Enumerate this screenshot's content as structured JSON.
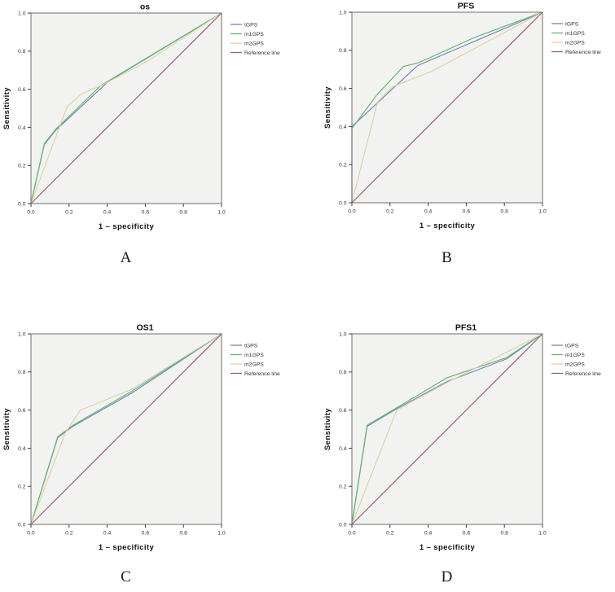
{
  "figure": {
    "background": "#ffffff",
    "panel_letters": [
      "A",
      "B",
      "C",
      "D"
    ]
  },
  "style": {
    "plot_bg": "#f2f2f1",
    "frame_color": "#6f6f6f",
    "tick_color": "#3c3c3c",
    "curve_colors": {
      "tGPS": "#6e86ba",
      "m1GPS": "#67b46d",
      "m2GPS": "#d9d3a7",
      "reference": "#975e79"
    }
  },
  "chart_data": [
    {
      "type": "line",
      "title": "os",
      "panel_letter": "A",
      "xlabel": "1 – specificity",
      "ylabel": "Sensitivity",
      "xlim": [
        0,
        1
      ],
      "ylim": [
        0,
        1
      ],
      "x_ticks": [
        0,
        0.2,
        0.4,
        0.6,
        0.8,
        1.0
      ],
      "y_ticks": [
        0,
        0.2,
        0.4,
        0.6,
        0.8,
        1.0
      ],
      "tick_labels": [
        "0.0",
        "0.2",
        "0.4",
        "0.6",
        "0.8",
        "1.0"
      ],
      "grid": false,
      "legend_position": "top-right-outside",
      "legend": [
        "tGPS",
        "m1GPS",
        "m2GPS",
        "Reference line"
      ],
      "series": [
        {
          "name": "tGPS",
          "color": "#6e86ba",
          "points": [
            [
              0,
              0
            ],
            [
              0.07,
              0.31
            ],
            [
              0.13,
              0.385
            ],
            [
              0.405,
              0.64
            ],
            [
              1,
              1
            ]
          ]
        },
        {
          "name": "m1GPS",
          "color": "#67b46d",
          "points": [
            [
              0,
              0
            ],
            [
              0.07,
              0.315
            ],
            [
              0.13,
              0.39
            ],
            [
              0.367,
              0.62
            ],
            [
              1,
              1
            ]
          ]
        },
        {
          "name": "m2GPS",
          "color": "#d9d3a7",
          "points": [
            [
              0,
              0
            ],
            [
              0.19,
              0.51
            ],
            [
              0.265,
              0.575
            ],
            [
              0.37,
              0.62
            ],
            [
              0.6,
              0.74
            ],
            [
              1,
              1
            ]
          ]
        },
        {
          "name": "Reference line",
          "color": "#975e79",
          "points": [
            [
              0,
              0
            ],
            [
              1,
              1
            ]
          ]
        }
      ]
    },
    {
      "type": "line",
      "title": "PFS",
      "panel_letter": "B",
      "xlabel": "1 – specificity",
      "ylabel": "Sensitivity",
      "xlim": [
        0,
        1
      ],
      "ylim": [
        0,
        1
      ],
      "x_ticks": [
        0,
        0.2,
        0.4,
        0.6,
        0.8,
        1.0
      ],
      "y_ticks": [
        0,
        0.2,
        0.4,
        0.6,
        0.8,
        1.0
      ],
      "tick_labels": [
        "0.0",
        "0.2",
        "0.4",
        "0.6",
        "0.8",
        "1.0"
      ],
      "grid": false,
      "legend_position": "top-right-outside",
      "legend": [
        "tGPS",
        "m1GPS",
        "m2GPS",
        "Reference line"
      ],
      "series": [
        {
          "name": "tGPS",
          "color": "#6e86ba",
          "points": [
            [
              0,
              0
            ],
            [
              0,
              0.4
            ],
            [
              0.345,
              0.72
            ],
            [
              1,
              1
            ]
          ]
        },
        {
          "name": "m1GPS",
          "color": "#67b46d",
          "points": [
            [
              0,
              0
            ],
            [
              0,
              0.39
            ],
            [
              0.13,
              0.565
            ],
            [
              0.27,
              0.715
            ],
            [
              0.35,
              0.735
            ],
            [
              0.65,
              0.87
            ],
            [
              1,
              1
            ]
          ]
        },
        {
          "name": "m2GPS",
          "color": "#d9d3a7",
          "points": [
            [
              0,
              0
            ],
            [
              0.135,
              0.53
            ],
            [
              0.216,
              0.61
            ],
            [
              0.42,
              0.69
            ],
            [
              1,
              1
            ]
          ]
        },
        {
          "name": "Reference line",
          "color": "#975e79",
          "points": [
            [
              0,
              0
            ],
            [
              1,
              1
            ]
          ]
        }
      ]
    },
    {
      "type": "line",
      "title": "OS1",
      "panel_letter": "C",
      "xlabel": "1 – specificity",
      "ylabel": "Sensitivity",
      "xlim": [
        0,
        1
      ],
      "ylim": [
        0,
        1
      ],
      "x_ticks": [
        0,
        0.2,
        0.4,
        0.6,
        0.8,
        1.0
      ],
      "y_ticks": [
        0,
        0.2,
        0.4,
        0.6,
        0.8,
        1.0
      ],
      "tick_labels": [
        "0.0",
        "0.2",
        "0.4",
        "0.6",
        "0.8",
        "1.0"
      ],
      "grid": false,
      "legend_position": "top-right-outside",
      "legend": [
        "tGPS",
        "m1GPS",
        "m2GPS",
        "Reference line"
      ],
      "series": [
        {
          "name": "tGPS",
          "color": "#6e86ba",
          "points": [
            [
              0,
              0
            ],
            [
              0.14,
              0.455
            ],
            [
              0.22,
              0.515
            ],
            [
              0.53,
              0.69
            ],
            [
              1,
              1
            ]
          ]
        },
        {
          "name": "m1GPS",
          "color": "#67b46d",
          "points": [
            [
              0,
              0
            ],
            [
              0.14,
              0.46
            ],
            [
              0.22,
              0.52
            ],
            [
              0.53,
              0.7
            ],
            [
              1,
              1
            ]
          ]
        },
        {
          "name": "m2GPS",
          "color": "#d9d3a7",
          "points": [
            [
              0,
              0
            ],
            [
              0.18,
              0.48
            ],
            [
              0.26,
              0.6
            ],
            [
              0.53,
              0.71
            ],
            [
              1,
              1
            ]
          ]
        },
        {
          "name": "Reference line",
          "color": "#975e79",
          "points": [
            [
              0,
              0
            ],
            [
              1,
              1
            ]
          ]
        }
      ]
    },
    {
      "type": "line",
      "title": "PFS1",
      "panel_letter": "D",
      "xlabel": "1 – specificity",
      "ylabel": "Sensitivity",
      "xlim": [
        0,
        1
      ],
      "ylim": [
        0,
        1
      ],
      "x_ticks": [
        0,
        0.2,
        0.4,
        0.6,
        0.8,
        1.0
      ],
      "y_ticks": [
        0,
        0.2,
        0.4,
        0.6,
        0.8,
        1.0
      ],
      "tick_labels": [
        "0.0",
        "0.2",
        "0.4",
        "0.6",
        "0.8",
        "1.0"
      ],
      "grid": false,
      "legend_position": "top-right-outside",
      "legend": [
        "tGPS",
        "m1GPS",
        "m2GPS",
        "Reference line"
      ],
      "series": [
        {
          "name": "tGPS",
          "color": "#6e86ba",
          "points": [
            [
              0,
              0
            ],
            [
              0.08,
              0.515
            ],
            [
              0.235,
              0.607
            ],
            [
              0.5,
              0.75
            ],
            [
              0.81,
              0.868
            ],
            [
              1,
              1
            ]
          ]
        },
        {
          "name": "m1GPS",
          "color": "#67b46d",
          "points": [
            [
              0,
              0
            ],
            [
              0.08,
              0.52
            ],
            [
              0.235,
              0.612
            ],
            [
              0.5,
              0.77
            ],
            [
              0.81,
              0.875
            ],
            [
              1,
              1
            ]
          ]
        },
        {
          "name": "m2GPS",
          "color": "#d9d3a7",
          "points": [
            [
              0,
              0
            ],
            [
              0.235,
              0.6
            ],
            [
              0.5,
              0.745
            ],
            [
              1,
              1
            ]
          ]
        },
        {
          "name": "Reference line",
          "color": "#975e79",
          "points": [
            [
              0,
              0
            ],
            [
              1,
              1
            ]
          ]
        }
      ]
    }
  ]
}
